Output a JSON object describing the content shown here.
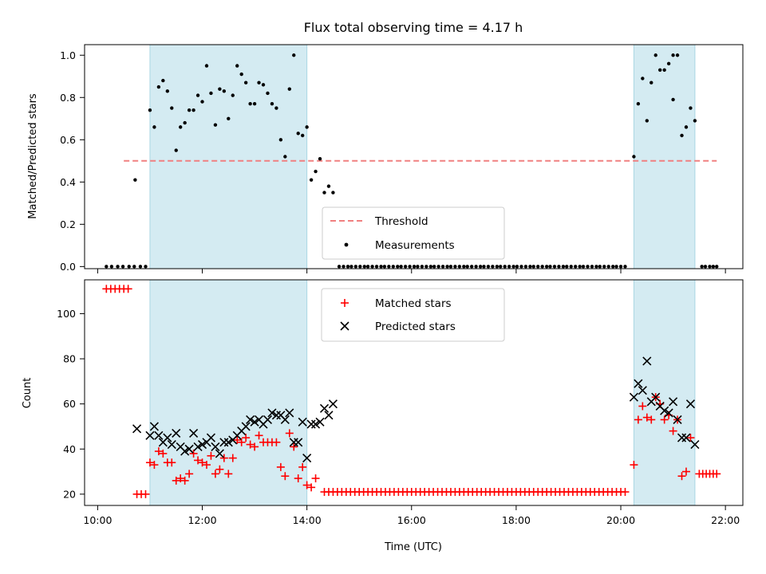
{
  "chart_data": [
    {
      "type": "scatter",
      "title": "Flux total observing time = 4.17 h",
      "xlabel": "",
      "ylabel": "Matched/Predicted stars",
      "xlim": [
        "10:00",
        "22:00"
      ],
      "ylim": [
        0,
        1.05
      ],
      "yticks": [
        "0.0",
        "0.2",
        "0.4",
        "0.6",
        "0.8",
        "1.0"
      ],
      "observing_windows": [
        [
          "11:00",
          "14:00"
        ],
        [
          "20:15",
          "21:25"
        ]
      ],
      "threshold": {
        "name": "Threshold",
        "value": 0.5,
        "x_range": [
          "10:30",
          "21:50"
        ],
        "color": "#f08080"
      },
      "legend": {
        "placement": "lower center",
        "entries": [
          "Threshold",
          "Measurements"
        ]
      },
      "series": [
        {
          "name": "Measurements",
          "marker": "dot",
          "color": "#000000",
          "zero_runs": [
            [
              "10:10",
              "10:55",
              8
            ],
            [
              "14:37",
              "20:05",
              70
            ],
            [
              "21:33",
              "21:50",
              5
            ]
          ],
          "points": [
            [
              "10:43",
              0.41
            ],
            [
              "11:00",
              0.74
            ],
            [
              "11:05",
              0.66
            ],
            [
              "11:10",
              0.85
            ],
            [
              "11:15",
              0.88
            ],
            [
              "11:20",
              0.83
            ],
            [
              "11:25",
              0.75
            ],
            [
              "11:30",
              0.55
            ],
            [
              "11:35",
              0.66
            ],
            [
              "11:40",
              0.68
            ],
            [
              "11:45",
              0.74
            ],
            [
              "11:50",
              0.74
            ],
            [
              "11:55",
              0.81
            ],
            [
              "12:00",
              0.78
            ],
            [
              "12:05",
              0.95
            ],
            [
              "12:10",
              0.82
            ],
            [
              "12:15",
              0.67
            ],
            [
              "12:20",
              0.84
            ],
            [
              "12:25",
              0.83
            ],
            [
              "12:30",
              0.7
            ],
            [
              "12:35",
              0.81
            ],
            [
              "12:40",
              0.95
            ],
            [
              "12:45",
              0.91
            ],
            [
              "12:50",
              0.87
            ],
            [
              "12:55",
              0.77
            ],
            [
              "13:00",
              0.77
            ],
            [
              "13:05",
              0.87
            ],
            [
              "13:10",
              0.86
            ],
            [
              "13:15",
              0.82
            ],
            [
              "13:20",
              0.77
            ],
            [
              "13:25",
              0.75
            ],
            [
              "13:30",
              0.6
            ],
            [
              "13:35",
              0.52
            ],
            [
              "13:40",
              0.84
            ],
            [
              "13:45",
              1.0
            ],
            [
              "13:50",
              0.63
            ],
            [
              "13:55",
              0.62
            ],
            [
              "14:00",
              0.66
            ],
            [
              "14:05",
              0.41
            ],
            [
              "14:10",
              0.45
            ],
            [
              "14:15",
              0.51
            ],
            [
              "14:20",
              0.35
            ],
            [
              "14:25",
              0.38
            ],
            [
              "14:30",
              0.35
            ],
            [
              "20:15",
              0.52
            ],
            [
              "20:20",
              0.77
            ],
            [
              "20:25",
              0.89
            ],
            [
              "20:30",
              0.69
            ],
            [
              "20:35",
              0.87
            ],
            [
              "20:40",
              1.0
            ],
            [
              "20:45",
              0.93
            ],
            [
              "20:50",
              0.93
            ],
            [
              "20:55",
              0.96
            ],
            [
              "21:00",
              1.0
            ],
            [
              "21:00",
              0.79
            ],
            [
              "21:05",
              1.0
            ],
            [
              "21:10",
              0.62
            ],
            [
              "21:15",
              0.66
            ],
            [
              "21:20",
              0.75
            ],
            [
              "21:25",
              0.69
            ]
          ]
        }
      ]
    },
    {
      "type": "scatter",
      "title": "",
      "xlabel": "Time (UTC)",
      "ylabel": "Count",
      "xlim": [
        "10:00",
        "22:00"
      ],
      "ylim": [
        15,
        115
      ],
      "xticks": [
        "10:00",
        "12:00",
        "14:00",
        "16:00",
        "18:00",
        "20:00",
        "22:00"
      ],
      "yticks": [
        "20",
        "40",
        "60",
        "80",
        "100"
      ],
      "observing_windows": [
        [
          "11:00",
          "14:00"
        ],
        [
          "20:15",
          "21:25"
        ]
      ],
      "legend": {
        "placement": "upper center",
        "entries": [
          "Matched stars",
          "Predicted stars"
        ]
      },
      "series": [
        {
          "name": "Matched stars",
          "marker": "plus",
          "color": "#ff0000",
          "runs": [
            [
              "10:10",
              "10:35",
              111,
              6
            ],
            [
              "14:20",
              "20:05",
              21,
              70
            ],
            [
              "21:30",
              "21:50",
              29,
              6
            ]
          ],
          "points": [
            [
              "10:45",
              20
            ],
            [
              "10:50",
              20
            ],
            [
              "10:55",
              20
            ],
            [
              "11:00",
              34
            ],
            [
              "11:05",
              33
            ],
            [
              "11:10",
              39
            ],
            [
              "11:15",
              38
            ],
            [
              "11:20",
              34
            ],
            [
              "11:25",
              34
            ],
            [
              "11:30",
              26
            ],
            [
              "11:35",
              27
            ],
            [
              "11:40",
              26
            ],
            [
              "11:45",
              29
            ],
            [
              "11:50",
              38
            ],
            [
              "11:55",
              35
            ],
            [
              "12:00",
              34
            ],
            [
              "12:05",
              33
            ],
            [
              "12:10",
              37
            ],
            [
              "12:15",
              29
            ],
            [
              "12:20",
              31
            ],
            [
              "12:25",
              36
            ],
            [
              "12:30",
              29
            ],
            [
              "12:35",
              36
            ],
            [
              "12:40",
              44
            ],
            [
              "12:45",
              43
            ],
            [
              "12:50",
              45
            ],
            [
              "12:55",
              42
            ],
            [
              "13:00",
              41
            ],
            [
              "13:05",
              46
            ],
            [
              "13:10",
              43
            ],
            [
              "13:15",
              43
            ],
            [
              "13:20",
              43
            ],
            [
              "13:25",
              43
            ],
            [
              "13:30",
              32
            ],
            [
              "13:35",
              28
            ],
            [
              "13:40",
              47
            ],
            [
              "13:45",
              41
            ],
            [
              "13:50",
              27
            ],
            [
              "13:55",
              32
            ],
            [
              "14:00",
              24
            ],
            [
              "14:05",
              23
            ],
            [
              "14:10",
              27
            ],
            [
              "20:15",
              33
            ],
            [
              "20:20",
              53
            ],
            [
              "20:25",
              59
            ],
            [
              "20:30",
              54
            ],
            [
              "20:35",
              53
            ],
            [
              "20:40",
              63
            ],
            [
              "20:45",
              60
            ],
            [
              "20:50",
              53
            ],
            [
              "20:55",
              55
            ],
            [
              "21:00",
              48
            ],
            [
              "21:05",
              53
            ],
            [
              "21:10",
              28
            ],
            [
              "21:15",
              30
            ],
            [
              "21:20",
              45
            ]
          ]
        },
        {
          "name": "Predicted stars",
          "marker": "x",
          "color": "#000000",
          "points": [
            [
              "10:45",
              49
            ],
            [
              "11:00",
              46
            ],
            [
              "11:05",
              50
            ],
            [
              "11:10",
              46
            ],
            [
              "11:15",
              43
            ],
            [
              "11:20",
              45
            ],
            [
              "11:25",
              42
            ],
            [
              "11:30",
              47
            ],
            [
              "11:35",
              41
            ],
            [
              "11:40",
              39
            ],
            [
              "11:45",
              40
            ],
            [
              "11:50",
              47
            ],
            [
              "11:55",
              41
            ],
            [
              "12:00",
              42
            ],
            [
              "12:05",
              43
            ],
            [
              "12:10",
              45
            ],
            [
              "12:15",
              41
            ],
            [
              "12:20",
              38
            ],
            [
              "12:25",
              43
            ],
            [
              "12:30",
              43
            ],
            [
              "12:35",
              44
            ],
            [
              "12:40",
              46
            ],
            [
              "12:45",
              48
            ],
            [
              "12:50",
              50
            ],
            [
              "12:55",
              53
            ],
            [
              "13:00",
              52
            ],
            [
              "13:05",
              53
            ],
            [
              "13:10",
              51
            ],
            [
              "13:15",
              53
            ],
            [
              "13:20",
              56
            ],
            [
              "13:25",
              55
            ],
            [
              "13:30",
              55
            ],
            [
              "13:35",
              53
            ],
            [
              "13:40",
              56
            ],
            [
              "13:45",
              43
            ],
            [
              "13:50",
              43
            ],
            [
              "13:55",
              52
            ],
            [
              "14:00",
              36
            ],
            [
              "14:05",
              51
            ],
            [
              "14:10",
              51
            ],
            [
              "14:15",
              52
            ],
            [
              "14:20",
              58
            ],
            [
              "14:25",
              55
            ],
            [
              "14:30",
              60
            ],
            [
              "20:15",
              63
            ],
            [
              "20:20",
              69
            ],
            [
              "20:25",
              66
            ],
            [
              "20:30",
              79
            ],
            [
              "20:35",
              61
            ],
            [
              "20:40",
              63
            ],
            [
              "20:45",
              59
            ],
            [
              "20:50",
              57
            ],
            [
              "20:55",
              56
            ],
            [
              "21:00",
              61
            ],
            [
              "21:05",
              53
            ],
            [
              "21:10",
              45
            ],
            [
              "21:15",
              45
            ],
            [
              "21:20",
              60
            ],
            [
              "21:25",
              42
            ]
          ]
        }
      ]
    }
  ],
  "colors": {
    "window": "#d4ebf2",
    "window_edge": "#a9d6e3",
    "threshold": "#f08080",
    "matched": "#ff0000",
    "predicted": "#000000",
    "dots": "#000000"
  }
}
